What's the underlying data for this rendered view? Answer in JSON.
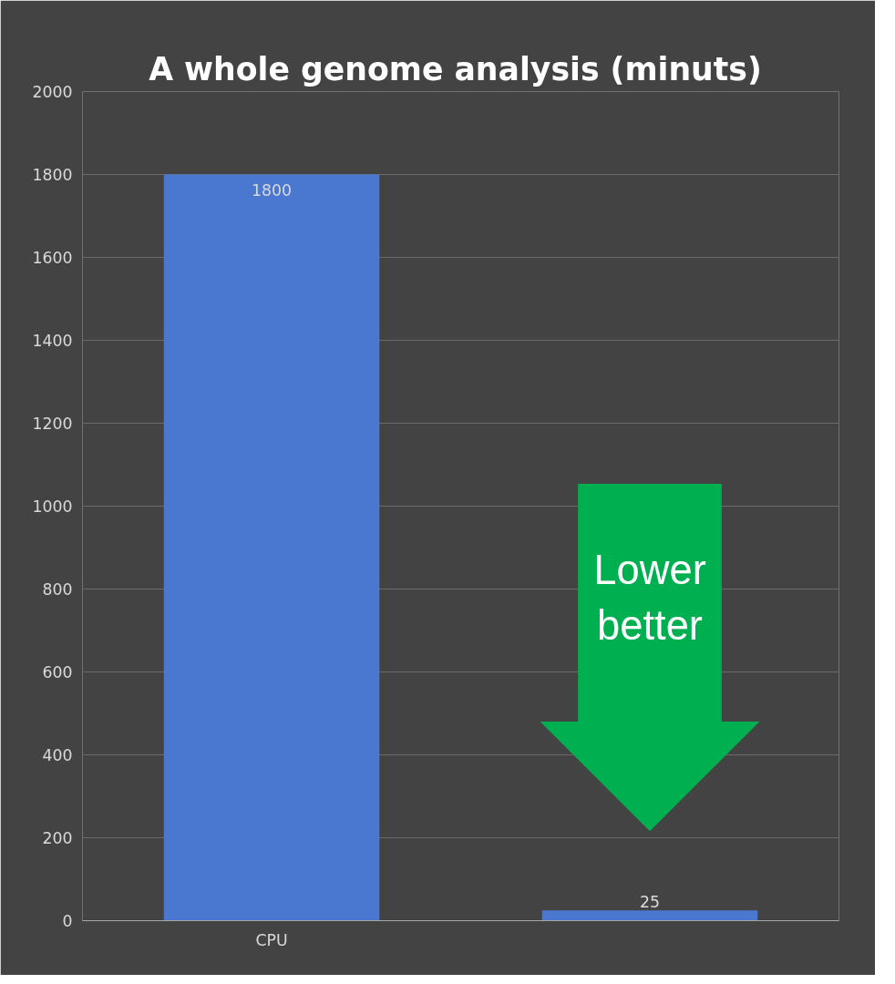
{
  "chart_data": {
    "type": "bar",
    "title": "A whole genome analysis  (minuts)",
    "categories": [
      "CPU",
      null
    ],
    "values": [
      1800,
      25
    ],
    "color": "#4a78d0",
    "ylim": [
      0,
      2000
    ],
    "yticks": [
      0,
      200,
      400,
      600,
      800,
      1000,
      1200,
      1400,
      1600,
      1800,
      2000
    ],
    "grid": "y",
    "data_labels": true,
    "annotations": [
      "Lower better"
    ]
  }
}
